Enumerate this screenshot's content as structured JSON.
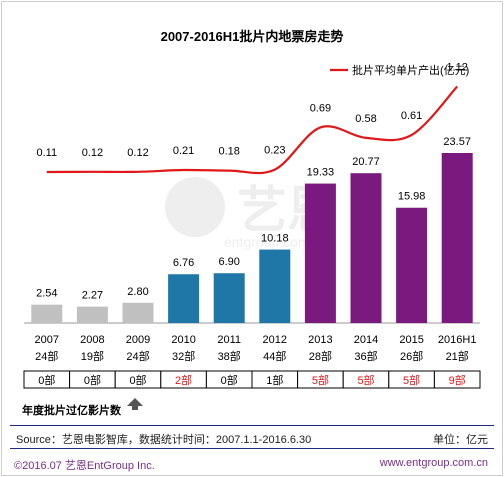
{
  "chart_data": {
    "type": "bar",
    "title": "2007-2016H1批片内地票房走势",
    "categories": [
      "2007",
      "2008",
      "2009",
      "2010",
      "2011",
      "2012",
      "2013",
      "2014",
      "2015",
      "2016H1"
    ],
    "film_counts": [
      "24部",
      "19部",
      "24部",
      "32部",
      "38部",
      "44部",
      "28部",
      "36部",
      "26部",
      "21部"
    ],
    "bar_values": [
      2.54,
      2.27,
      2.8,
      6.76,
      6.9,
      10.18,
      19.33,
      20.77,
      15.98,
      23.57
    ],
    "bar_colors": [
      "#c0c0c0",
      "#c0c0c0",
      "#c0c0c0",
      "#1f77a8",
      "#1f77a8",
      "#1f77a8",
      "#7b1a7e",
      "#7b1a7e",
      "#7b1a7e",
      "#7b1a7e"
    ],
    "line_series": {
      "name": "批片平均单片产出(亿元)",
      "values": [
        0.11,
        0.12,
        0.12,
        0.21,
        0.18,
        0.23,
        0.69,
        0.58,
        0.61,
        1.12
      ],
      "color": "#e01818"
    },
    "over_100m_counts": [
      "0部",
      "0部",
      "0部",
      "2部",
      "0部",
      "1部",
      "5部",
      "5部",
      "5部",
      "9部"
    ],
    "over_100m_colors": [
      "#000000",
      "#000000",
      "#000000",
      "#e01818",
      "#000000",
      "#000000",
      "#e01818",
      "#e01818",
      "#e01818",
      "#e01818"
    ],
    "ylim": [
      0,
      30
    ]
  },
  "note": {
    "subtitle": "年度批片过亿影片数"
  },
  "footer": {
    "source": "Source：艺恩电影智库，数据统计时间：2007.1.1-2016.6.30",
    "unit": "单位：亿元",
    "copyright": "©2016.07 艺恩EntGroup Inc.",
    "website": "www.entgroup.com.cn"
  }
}
